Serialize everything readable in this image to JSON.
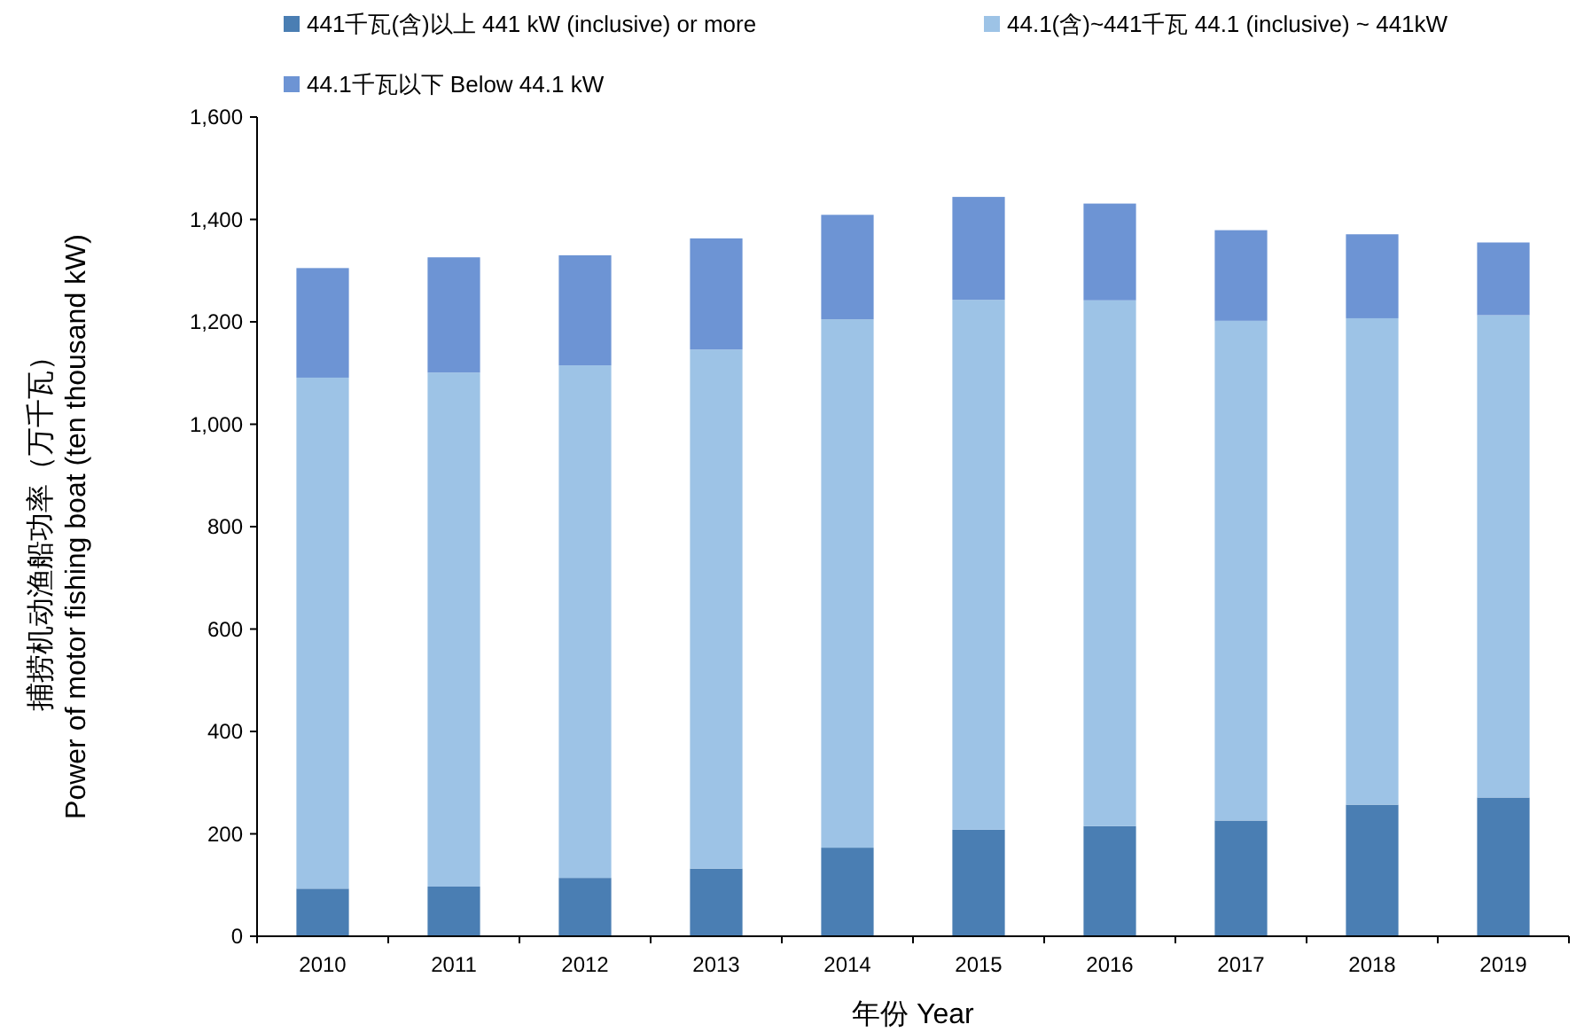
{
  "chart_data": {
    "type": "bar",
    "stacked": true,
    "xlabel": "年份 Year",
    "ylabel": "捕捞机动渔船功率（万千瓦）\nPower of motor fishing boat (ten thousand kW)",
    "categories": [
      "2010",
      "2011",
      "2012",
      "2013",
      "2014",
      "2015",
      "2016",
      "2017",
      "2018",
      "2019"
    ],
    "series": [
      {
        "name": "441千瓦(含)以上 441 kW (inclusive) or more",
        "color": "#4a7eb3",
        "values": [
          93,
          97,
          114,
          132,
          173,
          208,
          215,
          226,
          257,
          271
        ]
      },
      {
        "name": "44.1(含)~441千瓦 44.1 (inclusive) ~ 441kW",
        "color": "#9dc3e6",
        "values": [
          998,
          1004,
          1001,
          1014,
          1032,
          1035,
          1027,
          976,
          950,
          942
        ]
      },
      {
        "name": "44.1千瓦以下 Below 44.1 kW",
        "color": "#6d94d4",
        "values": [
          214,
          225,
          215,
          217,
          204,
          201,
          189,
          177,
          164,
          142
        ]
      }
    ],
    "ylim": [
      0,
      1600
    ],
    "yticks": [
      {
        "value": 0,
        "label": "0"
      },
      {
        "value": 200,
        "label": "200"
      },
      {
        "value": 400,
        "label": "400"
      },
      {
        "value": 600,
        "label": "600"
      },
      {
        "value": 800,
        "label": "800"
      },
      {
        "value": 1000,
        "label": "1,000"
      },
      {
        "value": 1200,
        "label": "1,200"
      },
      {
        "value": 1400,
        "label": "1,400"
      },
      {
        "value": 1600,
        "label": "1,600"
      }
    ],
    "grid": false,
    "legend": "top"
  }
}
